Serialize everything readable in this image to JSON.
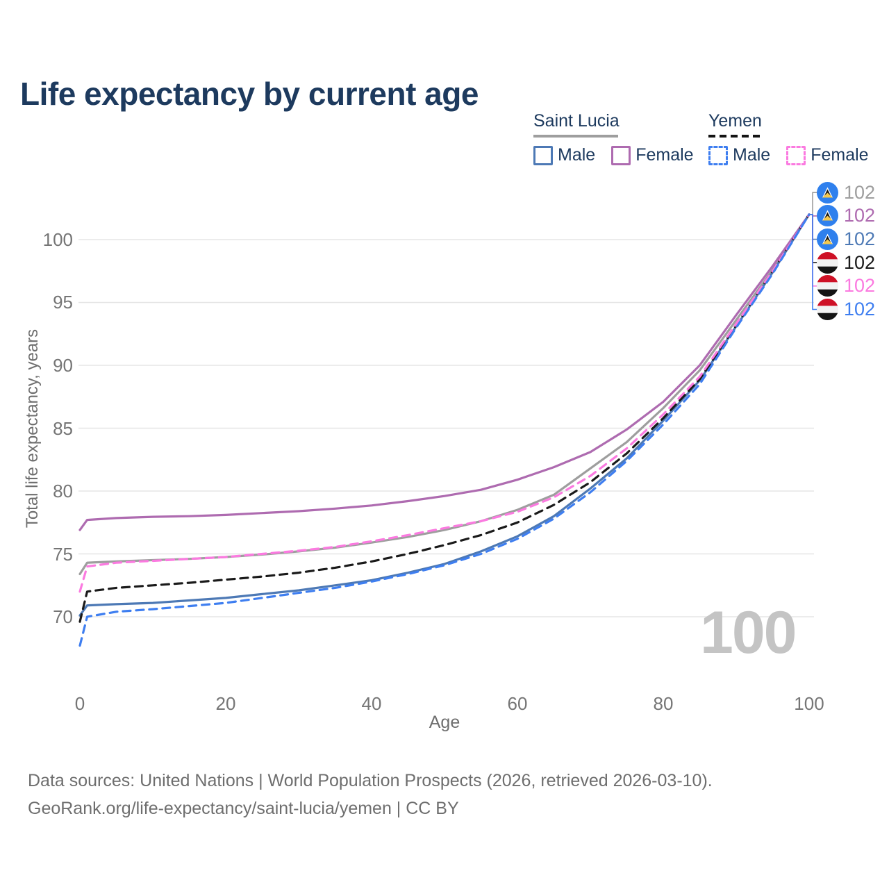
{
  "title": "Life expectancy by current age",
  "legend": {
    "groups": [
      {
        "country": "Saint Lucia",
        "line_style": "solid",
        "underline_color": "#9e9e9e",
        "items": [
          {
            "label": "Male",
            "color": "#4d79b5",
            "dashed": false
          },
          {
            "label": "Female",
            "color": "#ae6bb0",
            "dashed": false
          }
        ]
      },
      {
        "country": "Yemen",
        "line_style": "dashed",
        "underline_color": "#141414",
        "items": [
          {
            "label": "Male",
            "color": "#3e7ef0",
            "dashed": true
          },
          {
            "label": "Female",
            "color": "#fb7ae0",
            "dashed": true
          }
        ]
      }
    ]
  },
  "chart_data": {
    "type": "line",
    "title": "Life expectancy by current age",
    "xlabel": "Age",
    "ylabel": "Total life expectancy, years",
    "xlim": [
      0,
      100
    ],
    "ylim": [
      66.5,
      103
    ],
    "x_ticks": [
      0,
      20,
      40,
      60,
      80,
      100
    ],
    "y_ticks": [
      70,
      75,
      80,
      85,
      90,
      95,
      100
    ],
    "grid": true,
    "legend_position": "top-right",
    "age_counter": "100",
    "x": [
      0,
      1,
      5,
      10,
      15,
      20,
      25,
      30,
      35,
      40,
      45,
      50,
      55,
      60,
      65,
      70,
      75,
      80,
      85,
      90,
      95,
      100
    ],
    "series": [
      {
        "id": "saint-lucia-total",
        "name": "Saint Lucia Total",
        "country": "Saint Lucia",
        "flag": "saint-lucia",
        "color": "#9e9e9e",
        "dashed": false,
        "end_value": "102",
        "values": [
          73.4,
          74.3,
          74.4,
          74.5,
          74.6,
          74.75,
          74.95,
          75.2,
          75.5,
          75.9,
          76.35,
          76.9,
          77.6,
          78.5,
          79.7,
          81.8,
          83.9,
          86.6,
          89.6,
          93.6,
          97.6,
          102
        ]
      },
      {
        "id": "saint-lucia-female",
        "name": "Saint Lucia Female",
        "country": "Saint Lucia",
        "flag": "saint-lucia",
        "color": "#ae6bb0",
        "dashed": false,
        "end_value": "102",
        "values": [
          76.9,
          77.7,
          77.85,
          77.95,
          78.0,
          78.1,
          78.25,
          78.4,
          78.6,
          78.85,
          79.2,
          79.6,
          80.1,
          80.9,
          81.9,
          83.1,
          84.9,
          87.1,
          90.0,
          94.0,
          97.9,
          102
        ]
      },
      {
        "id": "saint-lucia-male",
        "name": "Saint Lucia Male",
        "country": "Saint Lucia",
        "flag": "saint-lucia",
        "color": "#4d79b5",
        "dashed": false,
        "end_value": "102",
        "values": [
          70.1,
          70.9,
          71.0,
          71.1,
          71.3,
          71.5,
          71.8,
          72.1,
          72.5,
          72.9,
          73.5,
          74.2,
          75.2,
          76.4,
          78.0,
          80.2,
          82.6,
          85.6,
          88.8,
          93.1,
          97.4,
          102
        ]
      },
      {
        "id": "yemen-total",
        "name": "Yemen Total",
        "country": "Yemen",
        "flag": "yemen",
        "color": "#1a1a1a",
        "dashed": true,
        "end_value": "102",
        "values": [
          69.6,
          72.0,
          72.3,
          72.5,
          72.7,
          72.95,
          73.2,
          73.5,
          73.9,
          74.4,
          75.0,
          75.7,
          76.5,
          77.5,
          78.9,
          80.7,
          83.0,
          85.8,
          88.9,
          93.2,
          97.5,
          102
        ]
      },
      {
        "id": "yemen-female",
        "name": "Yemen Female",
        "country": "Yemen",
        "flag": "yemen",
        "color": "#fb7ae0",
        "dashed": true,
        "end_value": "102",
        "values": [
          72.0,
          74.0,
          74.3,
          74.45,
          74.6,
          74.75,
          75.0,
          75.25,
          75.55,
          76.0,
          76.5,
          77.05,
          77.6,
          78.35,
          79.5,
          81.2,
          83.4,
          86.1,
          89.1,
          93.3,
          97.5,
          102
        ]
      },
      {
        "id": "yemen-male",
        "name": "Yemen Male",
        "country": "Yemen",
        "flag": "yemen",
        "color": "#3e7ef0",
        "dashed": true,
        "end_value": "102",
        "values": [
          67.7,
          70.0,
          70.4,
          70.6,
          70.85,
          71.1,
          71.5,
          71.9,
          72.3,
          72.8,
          73.4,
          74.1,
          75.0,
          76.2,
          77.8,
          79.9,
          82.4,
          85.3,
          88.5,
          93.0,
          97.3,
          102
        ]
      }
    ]
  },
  "footer": {
    "line1": "Data sources: United Nations | World Population Prospects (2026, retrieved 2026-03-10).",
    "line2": "GeoRank.org/life-expectancy/saint-lucia/yemen | CC BY"
  },
  "colors": {
    "title": "#1d3a5e",
    "grid": "#e5e5e5",
    "tick_label": "#757575",
    "watermark": "#c4c4c4",
    "saint_lucia_flag_blue": "#2f80ed",
    "saint_lucia_flag_gold": "#f5c84c",
    "yemen_flag_red": "#ce1126",
    "yemen_flag_black": "#141414"
  }
}
